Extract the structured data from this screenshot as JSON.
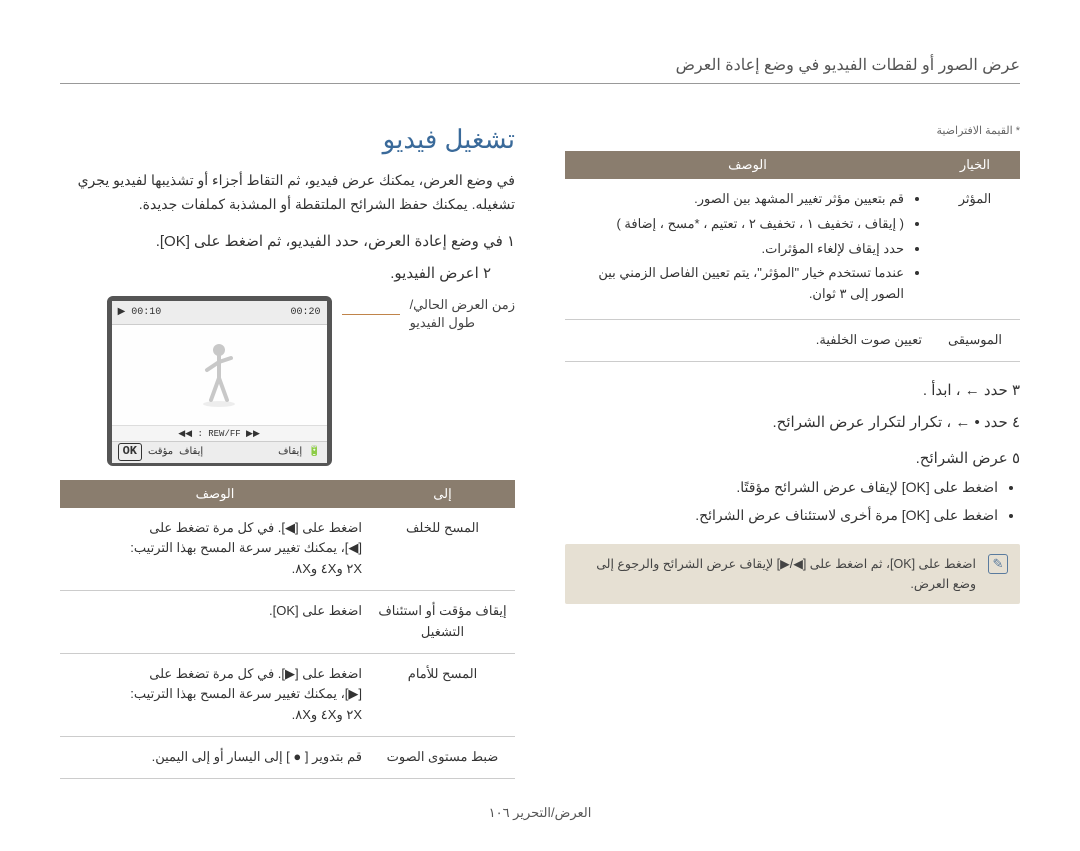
{
  "header": "عرض الصور أو لقطات الفيديو في وضع إعادة العرض",
  "right_col": {
    "default_note": "* القيمة الافتراضية",
    "table_headers": [
      "الخيار",
      "الوصف"
    ],
    "rows": [
      {
        "key": "المؤثر",
        "items": [
          "قم بتعيين مؤثر تغيير المشهد بين الصور.",
          "( إيقاف ، تخفيف ١ ، تخفيف ٢ ، تعتيم ، *مسح ، إضافة )",
          "حدد إيقاف لإلغاء المؤثرات.",
          "عندما تستخدم خيار \"المؤثر\"، يتم تعيين الفاصل الزمني بين الصور إلى ٣ ثوان."
        ]
      },
      {
        "key": "الموسيقى",
        "items": [
          "تعيين صوت الخلفية."
        ]
      }
    ],
    "step3": "٣   حدد   ←  ،  ابدأ .",
    "step4": "٤   حدد  • ←  ،  تكرار   لتكرار عرض الشرائح.",
    "slide_heading": "٥  عرض الشرائح.",
    "slide_bullets": [
      "اضغط على [OK] لإيقاف عرض الشرائح مؤقتًا.",
      "اضغط على [OK] مرة أخرى لاستئناف عرض الشرائح."
    ],
    "note": "اضغط على [OK]، ثم اضغط على [◀/▶] لإيقاف عرض الشرائح والرجوع إلى وضع العرض."
  },
  "left_col": {
    "video_title": "تشغيل فيديو",
    "intro": "في وضع العرض، يمكنك عرض فيديو، ثم التقاط أجزاء أو تشذيبها لفيديو يجري تشغيله. يمكنك حفظ الشرائح الملتقطة أو المشذبة كملفات جديدة.",
    "step1": "١   في وضع إعادة العرض، حدد الفيديو، ثم اضغط على [OK].",
    "step2": "٢   اعرض الفيديو.",
    "camera_label_1": "زمن العرض الحالي/",
    "camera_label_2": "طول الفيديو",
    "camera": {
      "time_left": "00:10",
      "time_right": "00:20",
      "rew": "◀◀ : REW/FF ▶▶",
      "ok": "OK",
      "pause": "إيقاف مؤقت",
      "stop": "إيقاف"
    },
    "ctrl_headers": [
      "إلى",
      "الوصف"
    ],
    "ctrl_rows": [
      {
        "key": "المسح للخلف",
        "desc_lines": [
          "اضغط على [◀]. في كل مرة تضغط على",
          "[◀]، يمكنك تغيير سرعة المسح بهذا الترتيب:",
          "٢X و٤X و٨X."
        ]
      },
      {
        "key": "إيقاف مؤقت أو استئناف التشغيل",
        "desc_lines": [
          "اضغط على [OK]."
        ]
      },
      {
        "key": "المسح للأمام",
        "desc_lines": [
          "اضغط على [▶]. في كل مرة تضغط على",
          "[▶]، يمكنك تغيير سرعة المسح بهذا الترتيب:",
          "٢X و٤X و٨X."
        ]
      },
      {
        "key": "ضبط مستوى الصوت",
        "desc_lines": [
          "قم بتدوير [  ●  ] إلى اليسار أو إلى اليمين."
        ]
      }
    ]
  },
  "footer": "العرض/التحرير  ١٠٦"
}
